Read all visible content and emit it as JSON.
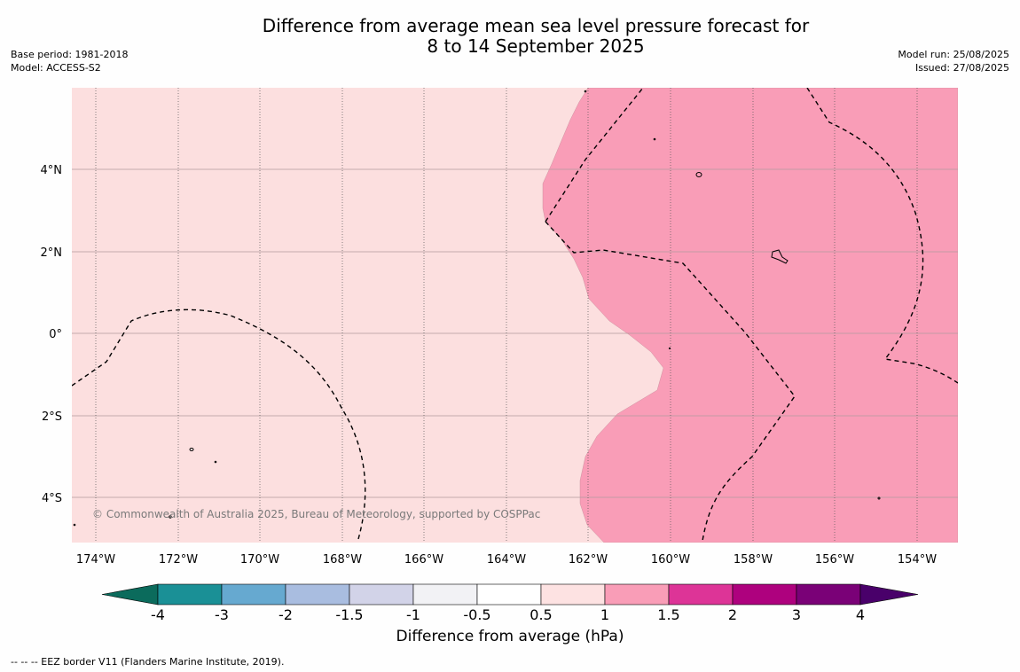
{
  "title": {
    "line1": "Difference from average mean sea level pressure forecast for",
    "line2": "8 to 14 September 2025"
  },
  "meta_left": {
    "base_period": "Base period: 1981-2018",
    "model": "Model: ACCESS-S2"
  },
  "meta_right": {
    "model_run": "Model run: 25/08/2025",
    "issued": "Issued: 27/08/2025"
  },
  "map": {
    "lon_labels": [
      "174°W",
      "172°W",
      "170°W",
      "168°W",
      "166°W",
      "164°W",
      "162°W",
      "160°W",
      "158°W",
      "156°W",
      "154°W"
    ],
    "lat_labels": [
      "4°N",
      "2°N",
      "0°",
      "2°S",
      "4°S"
    ],
    "copyright": "© Commonwealth of Australia 2025, Bureau of Meteorology, supported by COSPPac",
    "fill_colors": {
      "band_0_5_to_1": "#fcdfdf",
      "band_1_to_1_5": "#f99db7"
    }
  },
  "colorbar": {
    "title": "Difference from average (hPa)",
    "tick_labels": [
      "-4",
      "-3",
      "-2",
      "-1.5",
      "-1",
      "-0.5",
      "0.5",
      "1",
      "1.5",
      "2",
      "3",
      "4"
    ],
    "colors": [
      "#0b6b5c",
      "#1a9096",
      "#66a9d0",
      "#a9bde0",
      "#d2d3e8",
      "#f2f2f5",
      "#ffffff",
      "#fde2e2",
      "#f99db7",
      "#dd3497",
      "#ae017e",
      "#7a0177",
      "#49006a"
    ]
  },
  "footnote": "--  --  -- EEZ border V11 (Flanders Marine Institute, 2019)."
}
